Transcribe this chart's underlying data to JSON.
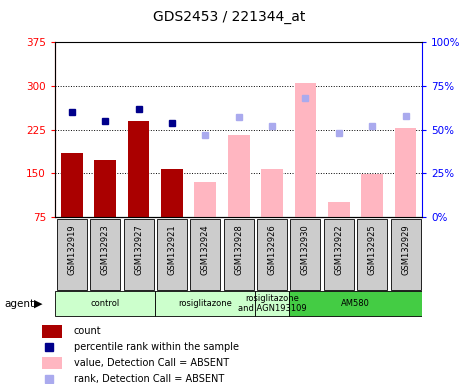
{
  "title": "GDS2453 / 221344_at",
  "samples": [
    "GSM132919",
    "GSM132923",
    "GSM132927",
    "GSM132921",
    "GSM132924",
    "GSM132928",
    "GSM132926",
    "GSM132930",
    "GSM132922",
    "GSM132925",
    "GSM132929"
  ],
  "count_values": [
    185,
    172,
    240,
    158,
    null,
    null,
    null,
    null,
    null,
    null,
    null
  ],
  "count_absent_values": [
    null,
    null,
    null,
    null,
    135,
    215,
    158,
    305,
    100,
    148,
    228
  ],
  "rank_values": [
    60,
    55,
    62,
    54,
    null,
    null,
    null,
    null,
    null,
    null,
    null
  ],
  "rank_absent_values": [
    null,
    null,
    null,
    null,
    47,
    57,
    52,
    68,
    48,
    52,
    58
  ],
  "ylim_left": [
    75,
    375
  ],
  "ylim_right": [
    0,
    100
  ],
  "yticks_left": [
    75,
    150,
    225,
    300,
    375
  ],
  "yticks_right": [
    0,
    25,
    50,
    75,
    100
  ],
  "groups": [
    {
      "label": "control",
      "start": 0,
      "end": 3
    },
    {
      "label": "rosiglitazone",
      "start": 3,
      "end": 6
    },
    {
      "label": "rosiglitazone\nand AGN193109",
      "start": 6,
      "end": 7
    },
    {
      "label": "AM580",
      "start": 7,
      "end": 11
    }
  ],
  "bar_color_present": "#AA0000",
  "bar_color_absent": "#FFB6C1",
  "rank_color_present": "#00008B",
  "rank_color_absent": "#AAAAEE",
  "light_green": "#CCFFCC",
  "dark_green": "#44CC44",
  "gray_box": "#CCCCCC",
  "agent_label": "agent",
  "legend_items": [
    {
      "label": "count",
      "color": "#AA0000",
      "type": "rect"
    },
    {
      "label": "percentile rank within the sample",
      "color": "#00008B",
      "type": "square"
    },
    {
      "label": "value, Detection Call = ABSENT",
      "color": "#FFB6C1",
      "type": "rect"
    },
    {
      "label": "rank, Detection Call = ABSENT",
      "color": "#AAAAEE",
      "type": "square"
    }
  ]
}
